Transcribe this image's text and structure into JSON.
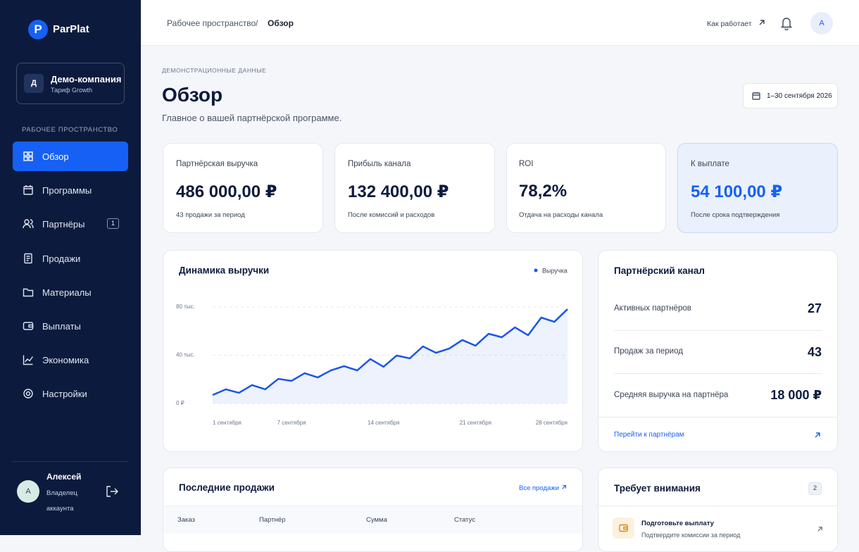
{
  "sidebar": {
    "logo": "ParPlat",
    "logo_letter": "P",
    "company": {
      "initial": "Д",
      "name": "Демо-компания",
      "plan": "Тариф Growth"
    },
    "section": "РАБОЧЕЕ ПРОСТРАНСТВО",
    "nav": [
      {
        "label": "Обзор"
      },
      {
        "label": "Программы"
      },
      {
        "label": "Партнёры",
        "badge": "1"
      },
      {
        "label": "Продажи"
      },
      {
        "label": "Материалы"
      },
      {
        "label": "Выплаты"
      },
      {
        "label": "Экономика"
      },
      {
        "label": "Настройки"
      }
    ],
    "user": {
      "initial": "А",
      "name": "Алексей",
      "role": "Владелец аккаунта"
    }
  },
  "topbar": {
    "breadcrumb": [
      "Рабочее пространство",
      "Обзор"
    ],
    "separator": "/",
    "help": "Как работает",
    "avatar": "А"
  },
  "header": {
    "eyebrow": "ДЕМОНСТРАЦИОННЫЕ ДАННЫЕ",
    "title": "Обзор",
    "subtitle": "Главное о вашей партнёрской программе.",
    "date_range": "1–30 сентября 2026"
  },
  "kpis": [
    {
      "label": "Партнёрская выручка",
      "value": "486 000,00 ₽",
      "note": "43 продажи за период"
    },
    {
      "label": "Прибыль канала",
      "value": "132 400,00 ₽",
      "note": "После комиссий и расходов"
    },
    {
      "label": "ROI",
      "value": "78,2%",
      "note": "Отдача на расходы канала"
    },
    {
      "label": "К выплате",
      "value": "54 100,00 ₽",
      "note": "После срока подтверждения"
    }
  ],
  "chart_data": {
    "type": "line",
    "title": "Динамика выручки",
    "categories": [
      "1 сентября",
      null,
      null,
      null,
      null,
      null,
      "7 сентября",
      null,
      null,
      null,
      null,
      null,
      null,
      "14 сентября",
      null,
      null,
      null,
      null,
      null,
      null,
      "21 сентября",
      null,
      null,
      null,
      null,
      null,
      null,
      "28 сентября"
    ],
    "series": [
      {
        "name": "Выручка",
        "color": "#1a56e8",
        "values": [
          7000,
          11700,
          8800,
          15200,
          11700,
          20400,
          18700,
          25100,
          21600,
          27400,
          30900,
          27400,
          36800,
          30400,
          39700,
          37400,
          47300,
          42000,
          45500,
          52600,
          47900,
          57800,
          54900,
          63100,
          56600,
          71200,
          67700,
          78200
        ]
      }
    ],
    "ylim": [
      0,
      80000
    ],
    "yticks": [
      {
        "value": 0,
        "label": "0 ₽"
      },
      {
        "value": 40000,
        "label": "40 тыс."
      },
      {
        "value": 80000,
        "label": "80 тыс."
      }
    ],
    "grid": true,
    "area": true
  },
  "channel": {
    "title": "Партнёрский канал",
    "rows": [
      {
        "label": "Активных партнёров",
        "value": "27"
      },
      {
        "label": "Продаж за период",
        "value": "43"
      },
      {
        "label": "Средняя выручка на партнёра",
        "value": "18 000 ₽"
      }
    ],
    "link": "Перейти к партнёрам"
  },
  "sales": {
    "title": "Последние продажи",
    "link": "Все продажи",
    "columns": [
      "Заказ",
      "Партнёр",
      "Сумма",
      "Статус"
    ]
  },
  "attention": {
    "title": "Требует внимания",
    "badge": "2",
    "items": [
      {
        "title": "Подготовьте выплату",
        "text": "Подтвердите комиссии за период"
      }
    ]
  }
}
